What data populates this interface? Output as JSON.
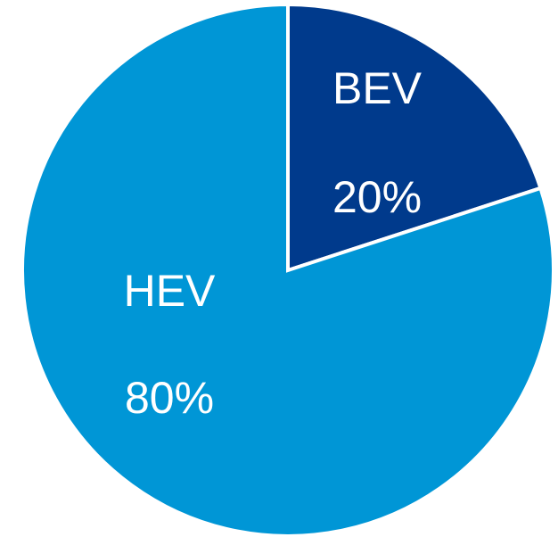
{
  "chart_data": {
    "type": "pie",
    "categories": [
      "BEV",
      "HEV"
    ],
    "values": [
      20,
      80
    ],
    "value_labels": [
      "20%",
      "80%"
    ],
    "colors": [
      "#003a8c",
      "#0096d6"
    ]
  }
}
